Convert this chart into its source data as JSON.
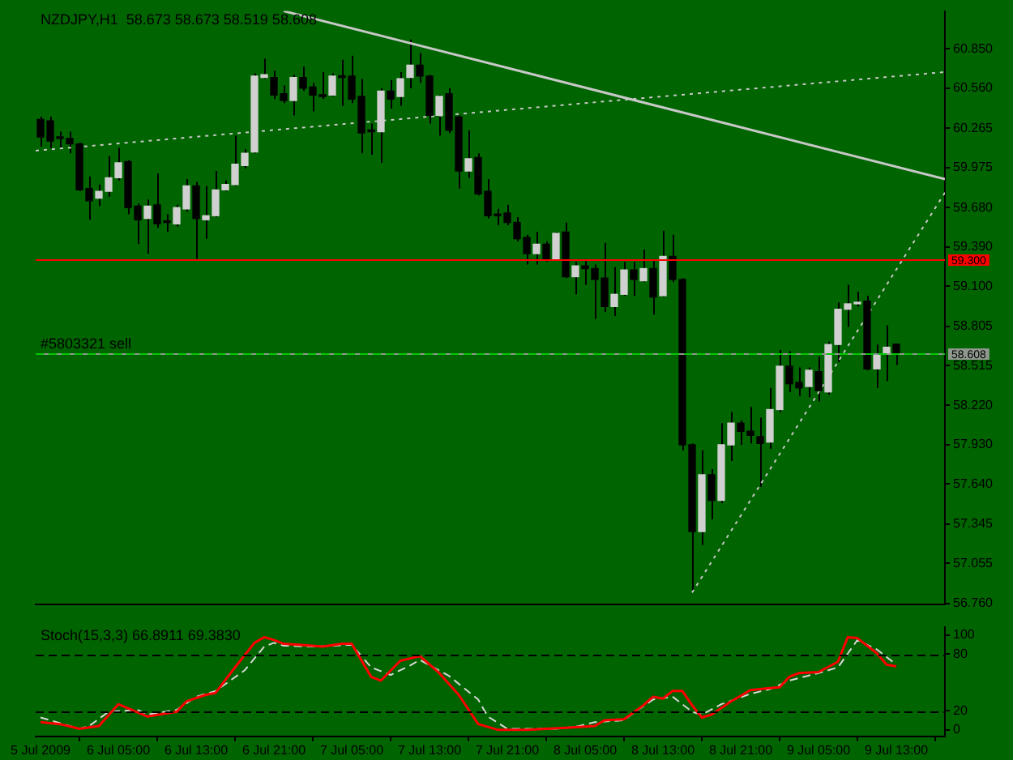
{
  "chart_data": [
    {
      "type": "candlestick",
      "title": "NZDJPY,H1  58.673 58.673 58.519 58.608",
      "x": [
        "2009-07-05T21:00",
        "2009-07-05T22:00",
        "2009-07-05T23:00",
        "2009-07-06T00:00",
        "2009-07-06T01:00",
        "2009-07-06T02:00",
        "2009-07-06T03:00",
        "2009-07-06T04:00",
        "2009-07-06T05:00",
        "2009-07-06T06:00",
        "2009-07-06T07:00",
        "2009-07-06T08:00",
        "2009-07-06T09:00",
        "2009-07-06T10:00",
        "2009-07-06T11:00",
        "2009-07-06T12:00",
        "2009-07-06T13:00",
        "2009-07-06T14:00",
        "2009-07-06T15:00",
        "2009-07-06T16:00",
        "2009-07-06T17:00",
        "2009-07-06T18:00",
        "2009-07-06T19:00",
        "2009-07-06T20:00",
        "2009-07-06T21:00",
        "2009-07-06T22:00",
        "2009-07-06T23:00",
        "2009-07-07T00:00",
        "2009-07-07T01:00",
        "2009-07-07T02:00",
        "2009-07-07T03:00",
        "2009-07-07T04:00",
        "2009-07-07T05:00",
        "2009-07-07T06:00",
        "2009-07-07T07:00",
        "2009-07-07T08:00",
        "2009-07-07T09:00",
        "2009-07-07T10:00",
        "2009-07-07T11:00",
        "2009-07-07T12:00",
        "2009-07-07T13:00",
        "2009-07-07T14:00",
        "2009-07-07T15:00",
        "2009-07-07T16:00",
        "2009-07-07T17:00",
        "2009-07-07T18:00",
        "2009-07-07T19:00",
        "2009-07-07T20:00",
        "2009-07-07T21:00",
        "2009-07-07T22:00",
        "2009-07-07T23:00",
        "2009-07-08T00:00",
        "2009-07-08T01:00",
        "2009-07-08T02:00",
        "2009-07-08T03:00",
        "2009-07-08T04:00",
        "2009-07-08T05:00",
        "2009-07-08T06:00",
        "2009-07-08T07:00",
        "2009-07-08T08:00",
        "2009-07-08T09:00",
        "2009-07-08T10:00",
        "2009-07-08T11:00",
        "2009-07-08T12:00",
        "2009-07-08T13:00",
        "2009-07-08T14:00",
        "2009-07-08T15:00",
        "2009-07-08T16:00",
        "2009-07-08T17:00",
        "2009-07-08T18:00",
        "2009-07-08T19:00",
        "2009-07-08T20:00",
        "2009-07-08T21:00",
        "2009-07-08T22:00",
        "2009-07-08T23:00",
        "2009-07-09T00:00",
        "2009-07-09T01:00",
        "2009-07-09T02:00",
        "2009-07-09T03:00",
        "2009-07-09T04:00",
        "2009-07-09T05:00",
        "2009-07-09T06:00",
        "2009-07-09T07:00",
        "2009-07-09T08:00",
        "2009-07-09T09:00",
        "2009-07-09T10:00",
        "2009-07-09T11:00",
        "2009-07-09T12:00",
        "2009-07-09T13:00"
      ],
      "ohlc": [
        [
          60.33,
          60.35,
          60.13,
          60.2
        ],
        [
          60.32,
          60.35,
          60.12,
          60.17
        ],
        [
          60.2,
          60.24,
          60.12,
          60.19
        ],
        [
          60.19,
          60.24,
          60.08,
          60.15
        ],
        [
          60.15,
          60.16,
          59.8,
          59.81
        ],
        [
          59.82,
          59.91,
          59.59,
          59.73
        ],
        [
          59.75,
          59.85,
          59.69,
          59.8
        ],
        [
          59.8,
          60.06,
          59.76,
          59.9
        ],
        [
          59.9,
          60.12,
          59.88,
          60.01
        ],
        [
          60.02,
          60.03,
          59.63,
          59.68
        ],
        [
          59.69,
          59.71,
          59.41,
          59.59
        ],
        [
          59.6,
          59.74,
          59.34,
          59.69
        ],
        [
          59.7,
          59.93,
          59.53,
          59.56
        ],
        [
          59.58,
          59.63,
          59.5,
          59.57
        ],
        [
          59.56,
          59.7,
          59.54,
          59.68
        ],
        [
          59.67,
          59.89,
          59.65,
          59.84
        ],
        [
          59.84,
          59.87,
          59.3,
          59.6
        ],
        [
          59.59,
          59.84,
          59.45,
          59.62
        ],
        [
          59.62,
          59.95,
          59.61,
          59.81
        ],
        [
          59.81,
          59.88,
          59.8,
          59.85
        ],
        [
          59.85,
          60.21,
          59.84,
          60.0
        ],
        [
          59.99,
          60.11,
          59.97,
          60.08
        ],
        [
          60.09,
          60.67,
          60.08,
          60.65
        ],
        [
          60.64,
          60.78,
          60.63,
          60.66
        ],
        [
          60.64,
          60.69,
          60.48,
          60.51
        ],
        [
          60.52,
          60.58,
          60.45,
          60.47
        ],
        [
          60.47,
          60.66,
          60.36,
          60.64
        ],
        [
          60.64,
          60.72,
          60.54,
          60.56
        ],
        [
          60.57,
          60.6,
          60.39,
          60.51
        ],
        [
          60.51,
          60.68,
          60.48,
          60.5
        ],
        [
          60.51,
          60.67,
          60.5,
          60.65
        ],
        [
          60.65,
          60.77,
          60.43,
          60.64
        ],
        [
          60.65,
          60.8,
          60.45,
          60.48
        ],
        [
          60.5,
          60.63,
          60.08,
          60.23
        ],
        [
          60.25,
          60.3,
          60.07,
          60.24
        ],
        [
          60.24,
          60.56,
          60.01,
          60.54
        ],
        [
          60.54,
          60.62,
          60.41,
          60.48
        ],
        [
          60.5,
          60.68,
          60.43,
          60.63
        ],
        [
          60.64,
          60.92,
          60.56,
          60.73
        ],
        [
          60.73,
          60.82,
          60.6,
          60.65
        ],
        [
          60.65,
          60.66,
          60.3,
          60.36
        ],
        [
          60.36,
          60.51,
          60.21,
          60.5
        ],
        [
          60.52,
          60.56,
          60.23,
          60.25
        ],
        [
          60.35,
          60.36,
          59.82,
          59.95
        ],
        [
          59.95,
          60.25,
          59.9,
          60.04
        ],
        [
          60.05,
          60.08,
          59.77,
          59.78
        ],
        [
          59.8,
          59.89,
          59.6,
          59.62
        ],
        [
          59.63,
          59.67,
          59.55,
          59.62
        ],
        [
          59.64,
          59.7,
          59.55,
          59.57
        ],
        [
          59.57,
          59.61,
          59.43,
          59.45
        ],
        [
          59.46,
          59.48,
          59.26,
          59.34
        ],
        [
          59.34,
          59.5,
          59.26,
          59.41
        ],
        [
          59.41,
          59.43,
          59.28,
          59.3
        ],
        [
          59.3,
          59.5,
          59.29,
          59.49
        ],
        [
          59.5,
          59.57,
          59.16,
          59.17
        ],
        [
          59.17,
          59.28,
          59.04,
          59.25
        ],
        [
          59.25,
          59.3,
          59.11,
          59.23
        ],
        [
          59.23,
          59.26,
          58.86,
          59.15
        ],
        [
          59.16,
          59.42,
          58.91,
          58.95
        ],
        [
          58.95,
          59.24,
          58.88,
          59.04
        ],
        [
          59.04,
          59.28,
          59.03,
          59.22
        ],
        [
          59.22,
          59.28,
          59.03,
          59.15
        ],
        [
          59.14,
          59.37,
          59.13,
          59.23
        ],
        [
          59.23,
          59.3,
          58.89,
          59.02
        ],
        [
          59.03,
          59.51,
          59.02,
          59.32
        ],
        [
          59.32,
          59.48,
          59.13,
          59.15
        ],
        [
          59.15,
          59.16,
          57.89,
          57.93
        ],
        [
          57.93,
          57.94,
          56.84,
          57.29
        ],
        [
          57.29,
          57.89,
          57.19,
          57.71
        ],
        [
          57.71,
          57.75,
          57.38,
          57.52
        ],
        [
          57.52,
          58.09,
          57.5,
          57.93
        ],
        [
          57.93,
          58.17,
          57.81,
          58.09
        ],
        [
          58.09,
          58.11,
          57.93,
          58.03
        ],
        [
          58.03,
          58.21,
          57.94,
          58.0
        ],
        [
          57.99,
          58.13,
          57.62,
          57.94
        ],
        [
          57.95,
          58.35,
          57.9,
          58.19
        ],
        [
          58.19,
          58.63,
          58.17,
          58.51
        ],
        [
          58.51,
          58.62,
          58.32,
          58.38
        ],
        [
          58.39,
          58.5,
          58.29,
          58.35
        ],
        [
          58.36,
          58.5,
          58.28,
          58.48
        ],
        [
          58.47,
          58.58,
          58.25,
          58.33
        ],
        [
          58.32,
          58.69,
          58.3,
          58.67
        ],
        [
          58.67,
          58.98,
          58.54,
          58.93
        ],
        [
          58.93,
          59.11,
          58.8,
          58.97
        ],
        [
          58.97,
          59.06,
          58.95,
          58.98
        ],
        [
          58.99,
          59.03,
          58.48,
          58.49
        ],
        [
          58.49,
          58.67,
          58.35,
          58.6
        ],
        [
          58.6,
          58.81,
          58.4,
          58.65
        ],
        [
          58.673,
          58.673,
          58.519,
          58.608
        ]
      ],
      "xlim": [
        "2009-07-05T20:30",
        "2009-07-09T18:00"
      ],
      "ylim": [
        56.75,
        61.13
      ],
      "yticks": [
        {
          "value": 56.76,
          "label": "56.760"
        },
        {
          "value": 57.055,
          "label": "57.055"
        },
        {
          "value": 57.345,
          "label": "57.345"
        },
        {
          "value": 57.64,
          "label": "57.640"
        },
        {
          "value": 57.93,
          "label": "57.930"
        },
        {
          "value": 58.22,
          "label": "58.220"
        },
        {
          "value": 58.515,
          "label": "58.515"
        },
        {
          "value": 58.805,
          "label": "58.805"
        },
        {
          "value": 59.1,
          "label": "59.100"
        },
        {
          "value": 59.39,
          "label": "59.390"
        },
        {
          "value": 59.68,
          "label": "59.680"
        },
        {
          "value": 59.975,
          "label": "59.975"
        },
        {
          "value": 60.265,
          "label": "60.265"
        },
        {
          "value": 60.56,
          "label": "60.560"
        },
        {
          "value": 60.85,
          "label": "60.850"
        }
      ],
      "tick_labels": "y",
      "grid": false,
      "legend": false,
      "series": [
        {
          "type": "line",
          "x": [
            "2009-07-06T22:00",
            "2009-07-09T18:00"
          ],
          "values": [
            61.13,
            59.89
          ],
          "color": "#c8c8c8",
          "line_style": "solid"
        },
        {
          "type": "line",
          "x": [
            "2009-07-05T20:30",
            "2009-07-09T18:00"
          ],
          "values": [
            60.1,
            60.68
          ],
          "color": "#c8c8c8",
          "line_style": "dotted"
        },
        {
          "type": "line",
          "x": [
            "2009-07-08T16:00",
            "2009-07-09T18:00"
          ],
          "values": [
            56.84,
            59.79
          ],
          "color": "#c8c8c8",
          "line_style": "dotted"
        }
      ],
      "ref_lines": [
        {
          "axis": "y",
          "value": 59.3,
          "label": "59.300",
          "color": "#ff0000",
          "line_style": "solid"
        },
        {
          "axis": "y",
          "value": 58.608,
          "label": "58.608",
          "color": "#909890",
          "line_style": "solid"
        },
        {
          "axis": "y",
          "value": 58.6,
          "label": "#5803321 sell",
          "color": "#00c800",
          "line_style": "dashed"
        }
      ]
    },
    {
      "type": "line",
      "title": "Stoch(15,3,3) 66.8911 69.3830",
      "xlim": [
        "2009-07-05T20:30",
        "2009-07-09T18:00"
      ],
      "xticks": [
        {
          "value": "2009-07-05T21:00",
          "label": "5 Jul 2009"
        },
        {
          "value": "2009-07-06T05:00",
          "label": "6 Jul 05:00"
        },
        {
          "value": "2009-07-06T13:00",
          "label": "6 Jul 13:00"
        },
        {
          "value": "2009-07-06T21:00",
          "label": "6 Jul 21:00"
        },
        {
          "value": "2009-07-07T05:00",
          "label": "7 Jul 05:00"
        },
        {
          "value": "2009-07-07T13:00",
          "label": "7 Jul 13:00"
        },
        {
          "value": "2009-07-07T21:00",
          "label": "7 Jul 21:00"
        },
        {
          "value": "2009-07-08T05:00",
          "label": "8 Jul 05:00"
        },
        {
          "value": "2009-07-08T13:00",
          "label": "8 Jul 13:00"
        },
        {
          "value": "2009-07-08T21:00",
          "label": "8 Jul 21:00"
        },
        {
          "value": "2009-07-09T05:00",
          "label": "9 Jul 05:00"
        },
        {
          "value": "2009-07-09T13:00",
          "label": "9 Jul 13:00"
        }
      ],
      "ylim": [
        -7,
        109
      ],
      "yticks": [
        0,
        20,
        80,
        100
      ],
      "grid": false,
      "legend": false,
      "series": [
        {
          "x": [
            "2009-07-05T21:00",
            "2009-07-05T23:00",
            "2009-07-06T01:00",
            "2009-07-06T03:00",
            "2009-07-06T05:00",
            "2009-07-06T08:00",
            "2009-07-06T11:00",
            "2009-07-06T12:00",
            "2009-07-06T14:00",
            "2009-07-06T15:00",
            "2009-07-06T17:00",
            "2009-07-06T19:00",
            "2009-07-06T20:00",
            "2009-07-06T21:00",
            "2009-07-06T22:00",
            "2009-07-07T01:00",
            "2009-07-07T02:00",
            "2009-07-07T04:00",
            "2009-07-07T05:00",
            "2009-07-07T07:00",
            "2009-07-07T08:00",
            "2009-07-07T10:00",
            "2009-07-07T12:00",
            "2009-07-07T14:00",
            "2009-07-07T16:00",
            "2009-07-07T18:00",
            "2009-07-07T20:00",
            "2009-07-07T23:00",
            "2009-07-08T01:00",
            "2009-07-08T03:00",
            "2009-07-08T06:00",
            "2009-07-08T07:00",
            "2009-07-08T09:00",
            "2009-07-08T11:00",
            "2009-07-08T12:00",
            "2009-07-08T13:00",
            "2009-07-08T14:00",
            "2009-07-08T15:00",
            "2009-07-08T16:00",
            "2009-07-08T17:00",
            "2009-07-08T18:00",
            "2009-07-08T20:00",
            "2009-07-08T22:00",
            "2009-07-09T00:00",
            "2009-07-09T01:00",
            "2009-07-09T02:00",
            "2009-07-09T03:00",
            "2009-07-09T05:00",
            "2009-07-09T07:00",
            "2009-07-09T08:00",
            "2009-07-09T09:00",
            "2009-07-09T11:00",
            "2009-07-09T12:00",
            "2009-07-09T13:00"
          ],
          "values": [
            8,
            6,
            1,
            4,
            27,
            14,
            19,
            30,
            37,
            39,
            66,
            92,
            98,
            95,
            91,
            89,
            88,
            91,
            91,
            56,
            52,
            73,
            78,
            60,
            37,
            6,
            0,
            0,
            1,
            2,
            4,
            10,
            11,
            26,
            35,
            33,
            41,
            41,
            26,
            13,
            16,
            30,
            42,
            44,
            45,
            56,
            60,
            61,
            72,
            98,
            97,
            81,
            69,
            67
          ],
          "color": "#ff0000",
          "line_style": "solid"
        },
        {
          "x": [
            "2009-07-05T21:00",
            "2009-07-06T01:00",
            "2009-07-06T02:00",
            "2009-07-06T04:00",
            "2009-07-06T07:00",
            "2009-07-06T08:00",
            "2009-07-06T11:00",
            "2009-07-06T13:00",
            "2009-07-06T15:00",
            "2009-07-06T18:00",
            "2009-07-06T20:00",
            "2009-07-06T21:00",
            "2009-07-06T22:00",
            "2009-07-07T01:00",
            "2009-07-07T03:00",
            "2009-07-07T05:00",
            "2009-07-07T07:00",
            "2009-07-07T09:00",
            "2009-07-07T11:00",
            "2009-07-07T12:00",
            "2009-07-07T15:00",
            "2009-07-07T18:00",
            "2009-07-07T19:00",
            "2009-07-07T21:00",
            "2009-07-07T23:00",
            "2009-07-08T02:00",
            "2009-07-08T04:00",
            "2009-07-08T06:00",
            "2009-07-08T09:00",
            "2009-07-08T10:00",
            "2009-07-08T12:00",
            "2009-07-08T14:00",
            "2009-07-08T16:00",
            "2009-07-08T17:00",
            "2009-07-08T19:00",
            "2009-07-08T22:00",
            "2009-07-09T00:00",
            "2009-07-09T02:00",
            "2009-07-09T05:00",
            "2009-07-09T07:00",
            "2009-07-09T09:00",
            "2009-07-09T11:00",
            "2009-07-09T13:00"
          ],
          "values": [
            13,
            1,
            4,
            19,
            21,
            16,
            21,
            35,
            41,
            63,
            88,
            92,
            89,
            88,
            89,
            90,
            66,
            58,
            68,
            74,
            57,
            32,
            14,
            1,
            1,
            1,
            3,
            8,
            10,
            18,
            32,
            35,
            19,
            16,
            27,
            38,
            43,
            52,
            60,
            66,
            95,
            85,
            69
          ],
          "color": "#d8d8d8",
          "line_style": "dashed"
        }
      ],
      "ref_lines": [
        {
          "axis": "y",
          "value": 20,
          "color": "#000000",
          "line_style": "dashed"
        },
        {
          "axis": "y",
          "value": 80,
          "color": "#000000",
          "line_style": "dashed"
        }
      ]
    }
  ]
}
